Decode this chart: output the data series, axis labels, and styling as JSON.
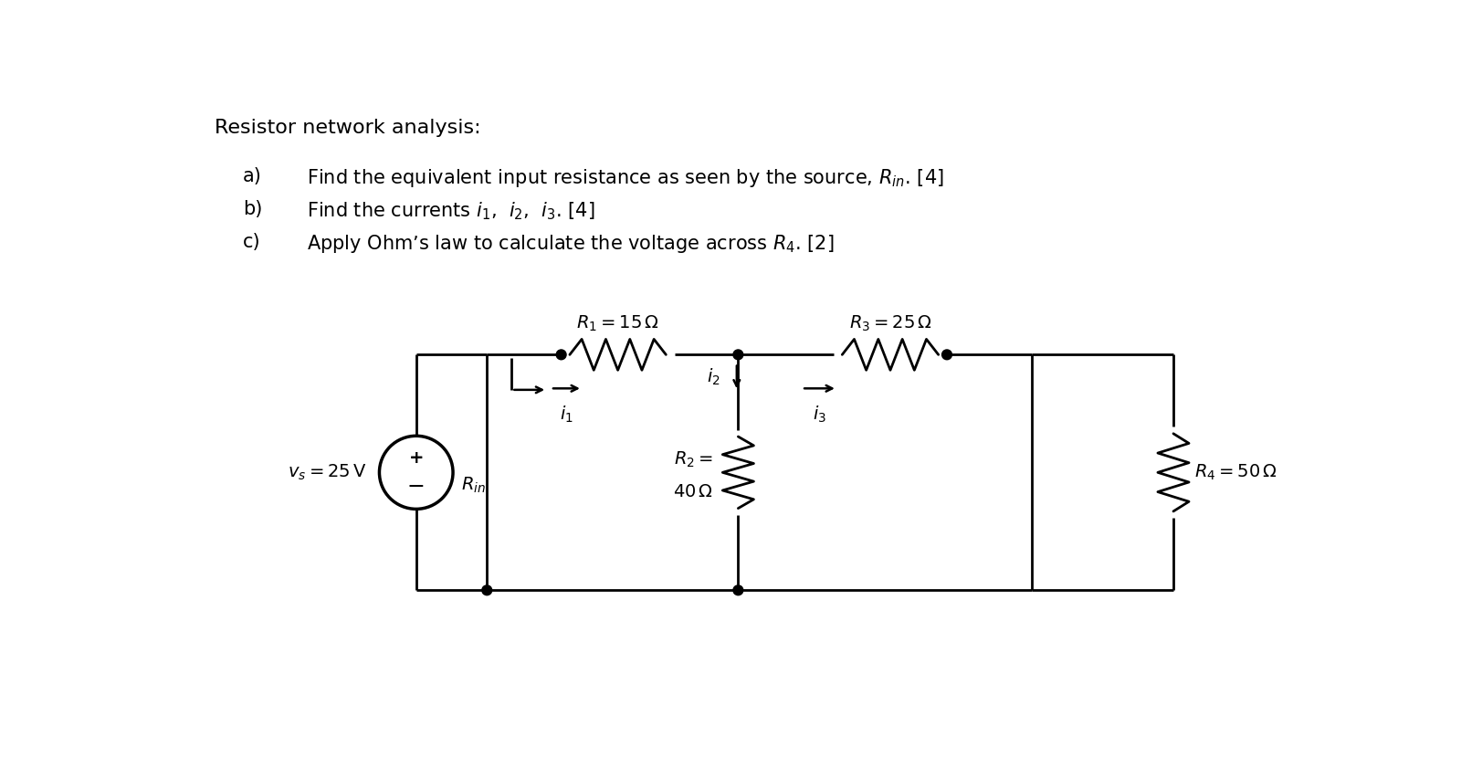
{
  "title": "Resistor network analysis:",
  "background_color": "#ffffff",
  "text_color": "#000000",
  "line_color": "#000000",
  "items": [
    {
      "label": "a)",
      "text": "Find the equivalent input resistance as seen by the source, $R_{in}$. [4]"
    },
    {
      "label": "b)",
      "text": "Find the currents $i_1$,  $i_2$,  $i_3$. [4]"
    },
    {
      "label": "c)",
      "text": "Apply Ohm’s law to calculate the voltage across $R_4$. [2]"
    }
  ],
  "R1_label": "$R_1 = 15\\,\\Omega$",
  "R3_label": "$R_3 = 25\\,\\Omega$",
  "R2_line1": "$R_2 =$",
  "R2_line2": "$40\\,\\Omega$",
  "R4_label": "$R_4 = 50\\,\\Omega$",
  "vs_label": "$v_s = 25\\,\\mathrm{V}$",
  "Rin_label": "$R_{in}$",
  "i1_label": "$i_1$",
  "i2_label": "$i_2$",
  "i3_label": "$i_3$"
}
